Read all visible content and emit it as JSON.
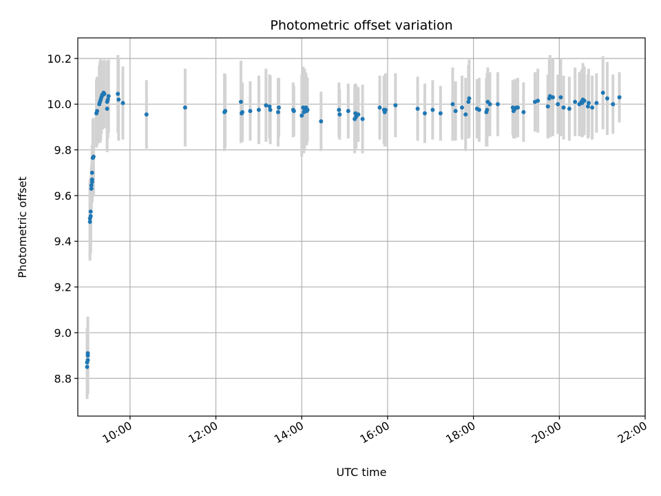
{
  "chart_data": {
    "type": "scatter",
    "title": "Photometric offset variation",
    "xlabel": "UTC time",
    "ylabel": "Photometric offset",
    "xlim": [
      "08:47",
      "22:00"
    ],
    "ylim": [
      8.635,
      10.29
    ],
    "x_ticks": [
      "10:00",
      "12:00",
      "14:00",
      "16:00",
      "18:00",
      "20:00",
      "22:00"
    ],
    "y_ticks": [
      "8.8",
      "9.0",
      "9.2",
      "9.4",
      "9.6",
      "9.8",
      "10.0",
      "10.2"
    ],
    "grid": true,
    "colors": {
      "point": "#1f77b4",
      "errorbar": "#d3d3d3",
      "grid": "#b0b0b0"
    },
    "points": [
      {
        "x": "09:00",
        "y": 8.85,
        "err": 0.14
      },
      {
        "x": "09:00",
        "y": 8.87,
        "err": 0.15
      },
      {
        "x": "09:01",
        "y": 8.88,
        "err": 0.15
      },
      {
        "x": "09:01",
        "y": 8.9,
        "err": 0.16
      },
      {
        "x": "09:01",
        "y": 8.91,
        "err": 0.16
      },
      {
        "x": "09:04",
        "y": 9.485,
        "err": 0.17
      },
      {
        "x": "09:04",
        "y": 9.5,
        "err": 0.17
      },
      {
        "x": "09:05",
        "y": 9.51,
        "err": 0.16
      },
      {
        "x": "09:05",
        "y": 9.53,
        "err": 0.15
      },
      {
        "x": "09:06",
        "y": 9.63,
        "err": 0.09
      },
      {
        "x": "09:06",
        "y": 9.645,
        "err": 0.09
      },
      {
        "x": "09:07",
        "y": 9.66,
        "err": 0.09
      },
      {
        "x": "09:07",
        "y": 9.67,
        "err": 0.1
      },
      {
        "x": "09:07",
        "y": 9.7,
        "err": 0.12
      },
      {
        "x": "09:08",
        "y": 9.765,
        "err": 0.17
      },
      {
        "x": "09:09",
        "y": 9.77,
        "err": 0.17
      },
      {
        "x": "09:13",
        "y": 9.96,
        "err": 0.15
      },
      {
        "x": "09:14",
        "y": 9.97,
        "err": 0.15
      },
      {
        "x": "09:17",
        "y": 10.0,
        "err": 0.17
      },
      {
        "x": "09:18",
        "y": 10.01,
        "err": 0.18
      },
      {
        "x": "09:19",
        "y": 10.02,
        "err": 0.18
      },
      {
        "x": "09:20",
        "y": 10.03,
        "err": 0.16
      },
      {
        "x": "09:21",
        "y": 10.04,
        "err": 0.15
      },
      {
        "x": "09:22",
        "y": 10.04,
        "err": 0.15
      },
      {
        "x": "09:23",
        "y": 10.05,
        "err": 0.14
      },
      {
        "x": "09:24",
        "y": 10.045,
        "err": 0.15
      },
      {
        "x": "09:28",
        "y": 9.98,
        "err": 0.19
      },
      {
        "x": "09:28",
        "y": 10.01,
        "err": 0.18
      },
      {
        "x": "09:29",
        "y": 10.02,
        "err": 0.17
      },
      {
        "x": "09:30",
        "y": 10.035,
        "err": 0.16
      },
      {
        "x": "09:43",
        "y": 10.045,
        "err": 0.17
      },
      {
        "x": "09:44",
        "y": 10.02,
        "err": 0.18
      },
      {
        "x": "09:50",
        "y": 10.005,
        "err": 0.16
      },
      {
        "x": "10:23",
        "y": 9.955,
        "err": 0.15
      },
      {
        "x": "11:17",
        "y": 9.985,
        "err": 0.17
      },
      {
        "x": "12:12",
        "y": 9.965,
        "err": 0.17
      },
      {
        "x": "12:13",
        "y": 9.97,
        "err": 0.16
      },
      {
        "x": "12:35",
        "y": 10.01,
        "err": 0.18
      },
      {
        "x": "12:36",
        "y": 9.96,
        "err": 0.12
      },
      {
        "x": "12:37",
        "y": 9.965,
        "err": 0.13
      },
      {
        "x": "12:48",
        "y": 9.97,
        "err": 0.13
      },
      {
        "x": "13:00",
        "y": 9.975,
        "err": 0.15
      },
      {
        "x": "13:10",
        "y": 9.995,
        "err": 0.16
      },
      {
        "x": "13:15",
        "y": 9.99,
        "err": 0.14
      },
      {
        "x": "13:16",
        "y": 9.975,
        "err": 0.15
      },
      {
        "x": "13:27",
        "y": 9.965,
        "err": 0.15
      },
      {
        "x": "13:28",
        "y": 9.985,
        "err": 0.13
      },
      {
        "x": "13:48",
        "y": 9.975,
        "err": 0.12
      },
      {
        "x": "13:49",
        "y": 9.97,
        "err": 0.11
      },
      {
        "x": "14:00",
        "y": 9.95,
        "err": 0.18
      },
      {
        "x": "14:02",
        "y": 9.985,
        "err": 0.18
      },
      {
        "x": "14:03",
        "y": 9.965,
        "err": 0.18
      },
      {
        "x": "14:04",
        "y": 9.975,
        "err": 0.18
      },
      {
        "x": "14:05",
        "y": 9.98,
        "err": 0.16
      },
      {
        "x": "14:06",
        "y": 9.985,
        "err": 0.15
      },
      {
        "x": "14:07",
        "y": 9.97,
        "err": 0.15
      },
      {
        "x": "14:08",
        "y": 9.975,
        "err": 0.14
      },
      {
        "x": "14:27",
        "y": 9.925,
        "err": 0.13
      },
      {
        "x": "14:52",
        "y": 9.975,
        "err": 0.12
      },
      {
        "x": "14:53",
        "y": 9.955,
        "err": 0.11
      },
      {
        "x": "15:05",
        "y": 9.97,
        "err": 0.12
      },
      {
        "x": "15:14",
        "y": 9.935,
        "err": 0.15
      },
      {
        "x": "15:15",
        "y": 9.96,
        "err": 0.13
      },
      {
        "x": "15:16",
        "y": 9.945,
        "err": 0.14
      },
      {
        "x": "15:19",
        "y": 9.955,
        "err": 0.12
      },
      {
        "x": "15:25",
        "y": 9.935,
        "err": 0.15
      },
      {
        "x": "15:49",
        "y": 9.985,
        "err": 0.14
      },
      {
        "x": "15:55",
        "y": 9.975,
        "err": 0.15
      },
      {
        "x": "15:56",
        "y": 9.965,
        "err": 0.15
      },
      {
        "x": "15:57",
        "y": 9.975,
        "err": 0.16
      },
      {
        "x": "16:11",
        "y": 9.995,
        "err": 0.14
      },
      {
        "x": "16:42",
        "y": 9.98,
        "err": 0.14
      },
      {
        "x": "16:52",
        "y": 9.96,
        "err": 0.13
      },
      {
        "x": "17:03",
        "y": 9.975,
        "err": 0.13
      },
      {
        "x": "17:14",
        "y": 9.96,
        "err": 0.12
      },
      {
        "x": "17:31",
        "y": 10.0,
        "err": 0.16
      },
      {
        "x": "17:35",
        "y": 9.97,
        "err": 0.13
      },
      {
        "x": "17:44",
        "y": 9.985,
        "err": 0.14
      },
      {
        "x": "17:49",
        "y": 9.955,
        "err": 0.16
      },
      {
        "x": "17:53",
        "y": 10.01,
        "err": 0.16
      },
      {
        "x": "17:54",
        "y": 10.025,
        "err": 0.17
      },
      {
        "x": "18:05",
        "y": 9.98,
        "err": 0.13
      },
      {
        "x": "18:08",
        "y": 9.975,
        "err": 0.14
      },
      {
        "x": "18:18",
        "y": 9.965,
        "err": 0.15
      },
      {
        "x": "18:19",
        "y": 9.975,
        "err": 0.16
      },
      {
        "x": "18:20",
        "y": 10.01,
        "err": 0.15
      },
      {
        "x": "18:23",
        "y": 10.0,
        "err": 0.14
      },
      {
        "x": "18:34",
        "y": 10.0,
        "err": 0.14
      },
      {
        "x": "18:55",
        "y": 9.985,
        "err": 0.12
      },
      {
        "x": "18:56",
        "y": 9.97,
        "err": 0.12
      },
      {
        "x": "18:58",
        "y": 9.98,
        "err": 0.13
      },
      {
        "x": "19:00",
        "y": 9.985,
        "err": 0.12
      },
      {
        "x": "19:02",
        "y": 9.985,
        "err": 0.13
      },
      {
        "x": "19:10",
        "y": 9.965,
        "err": 0.13
      },
      {
        "x": "19:26",
        "y": 10.01,
        "err": 0.13
      },
      {
        "x": "19:30",
        "y": 10.015,
        "err": 0.14
      },
      {
        "x": "19:44",
        "y": 9.99,
        "err": 0.14
      },
      {
        "x": "19:46",
        "y": 10.025,
        "err": 0.17
      },
      {
        "x": "19:47",
        "y": 10.035,
        "err": 0.18
      },
      {
        "x": "19:51",
        "y": 10.03,
        "err": 0.17
      },
      {
        "x": "19:58",
        "y": 10.0,
        "err": 0.13
      },
      {
        "x": "20:02",
        "y": 10.03,
        "err": 0.17
      },
      {
        "x": "20:06",
        "y": 9.985,
        "err": 0.14
      },
      {
        "x": "20:14",
        "y": 9.98,
        "err": 0.14
      },
      {
        "x": "20:22",
        "y": 10.01,
        "err": 0.15
      },
      {
        "x": "20:28",
        "y": 10.0,
        "err": 0.14
      },
      {
        "x": "20:31",
        "y": 10.01,
        "err": 0.14
      },
      {
        "x": "20:32",
        "y": 10.005,
        "err": 0.15
      },
      {
        "x": "20:33",
        "y": 10.02,
        "err": 0.16
      },
      {
        "x": "20:35",
        "y": 10.015,
        "err": 0.15
      },
      {
        "x": "20:40",
        "y": 9.99,
        "err": 0.14
      },
      {
        "x": "20:41",
        "y": 10.005,
        "err": 0.15
      },
      {
        "x": "20:46",
        "y": 9.985,
        "err": 0.14
      },
      {
        "x": "20:52",
        "y": 10.005,
        "err": 0.13
      },
      {
        "x": "21:01",
        "y": 10.05,
        "err": 0.16
      },
      {
        "x": "21:07",
        "y": 10.025,
        "err": 0.16
      },
      {
        "x": "21:15",
        "y": 10.0,
        "err": 0.13
      },
      {
        "x": "21:24",
        "y": 10.03,
        "err": 0.11
      }
    ]
  }
}
